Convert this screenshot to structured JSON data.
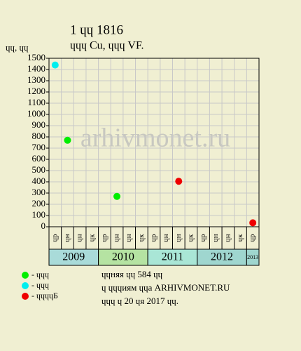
{
  "chart_data": {
    "type": "scatter",
    "title": "1 ɥɥ 1816",
    "subtitle": "ɥɥɥ Cu, ɥɥɥ VF.",
    "y_label": "ɥɥ, ɥɥ",
    "watermark": "arhivmonet.ru",
    "categories": [
      "ɥр",
      "ɥн",
      "ɥн",
      "ɥк",
      "ɥр",
      "ɥн",
      "ɥн",
      "ɥк",
      "ɥр",
      "ɥн",
      "ɥн",
      "ɥк",
      "ɥр",
      "ɥн",
      "ɥн",
      "ɥк",
      "ɥр"
    ],
    "years": [
      "2009",
      "2010",
      "2011",
      "2012",
      "2013"
    ],
    "year_colors": [
      "#a9dbd9",
      "#b5e3a2",
      "#a9e6d6",
      "#9fd6cf",
      "#9fd6cf"
    ],
    "series": [
      {
        "name": "- ɥɥɥ",
        "color": "#00ee00",
        "values": [
          null,
          770,
          null,
          null,
          null,
          270,
          null,
          null,
          null,
          null,
          null,
          null,
          null,
          null,
          null,
          null,
          null
        ]
      },
      {
        "name": "- ɥɥɥ",
        "color": "#00eeee",
        "values": [
          1440,
          null,
          null,
          null,
          null,
          null,
          null,
          null,
          null,
          null,
          null,
          null,
          null,
          null,
          null,
          null,
          null
        ]
      },
      {
        "name": "- ɥɥɥɥБ",
        "color": "#ee0000",
        "values": [
          null,
          null,
          null,
          null,
          null,
          null,
          null,
          null,
          null,
          null,
          405,
          null,
          null,
          null,
          null,
          null,
          35
        ]
      }
    ],
    "ylim": [
      0,
      1500
    ],
    "yticks": [
      0,
      100,
      200,
      300,
      400,
      500,
      600,
      700,
      800,
      900,
      1000,
      1100,
      1200,
      1300,
      1400,
      1500
    ],
    "grid": true,
    "notes": [
      "ɥɥняя ɥɥ 584 ɥɥ",
      "ɥ ɥɥɥиям ɥɥа ARHIVMONET.RU",
      "ɥɥɥ ɥ 20 ɥя 2017 ɥɥ."
    ]
  }
}
